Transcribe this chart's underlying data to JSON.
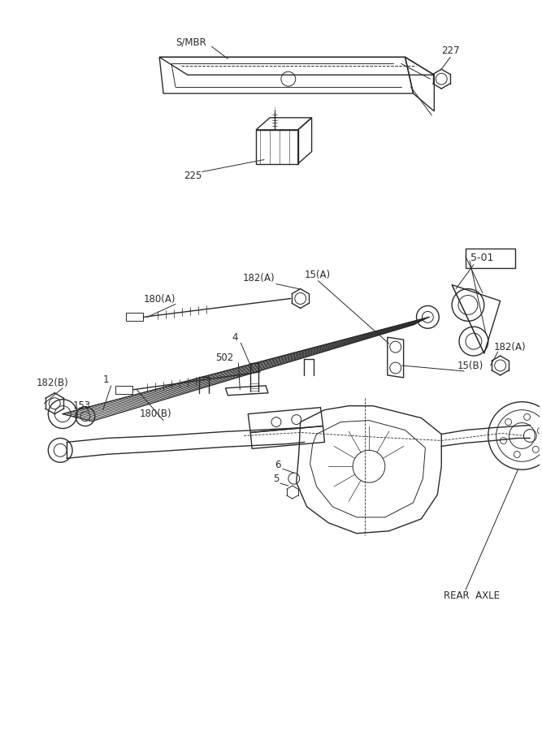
{
  "bg_color": "#ffffff",
  "line_color": "#2a2a2a",
  "fig_width": 6.67,
  "fig_height": 9.0,
  "dpi": 100,
  "xlim": [
    0,
    667
  ],
  "ylim": [
    0,
    900
  ]
}
